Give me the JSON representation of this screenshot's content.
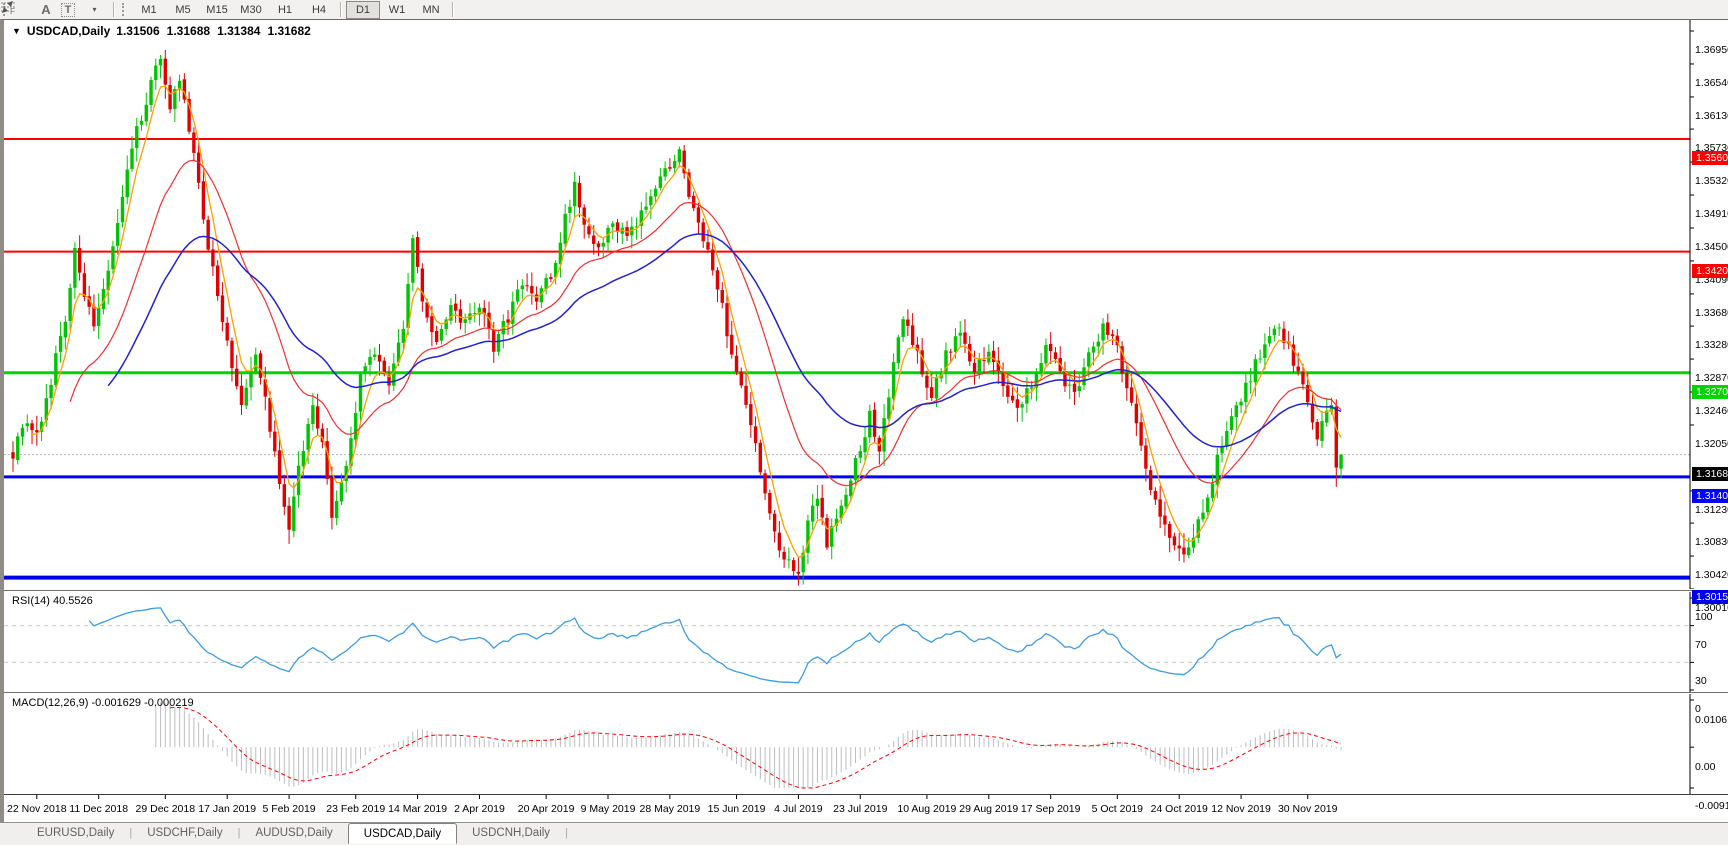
{
  "toolbar": {
    "tool_icons": [
      {
        "name": "fibonacci-lines-icon"
      },
      {
        "name": "text-annotation-icon",
        "glyph": "A"
      },
      {
        "name": "text-label-icon",
        "glyph": "T"
      },
      {
        "name": "arrow-objects-icon"
      },
      {
        "name": "dropdown-caret-icon",
        "glyph": "▾"
      }
    ],
    "timeframes": [
      {
        "label": "M1",
        "active": false
      },
      {
        "label": "M5",
        "active": false
      },
      {
        "label": "M15",
        "active": false
      },
      {
        "label": "M30",
        "active": false
      },
      {
        "label": "H1",
        "active": false
      },
      {
        "label": "H4",
        "active": false
      },
      {
        "label": "D1",
        "active": true
      },
      {
        "label": "W1",
        "active": false
      },
      {
        "label": "MN",
        "active": false
      }
    ]
  },
  "chart": {
    "collapse_marker": "▼",
    "symbol_title": "USDCAD,Daily",
    "ohlc": {
      "open": "1.31506",
      "high": "1.31688",
      "low": "1.31384",
      "close": "1.31682"
    }
  },
  "rsi_panel": {
    "name": "RSI(14)",
    "value": "40.5526"
  },
  "macd_panel": {
    "name": "MACD(12,26,9)",
    "value_main": "-0.001629",
    "value_signal": "-0.000219"
  },
  "tabs": [
    {
      "label": "EURUSD,Daily",
      "active": false
    },
    {
      "label": "USDCHF,Daily",
      "active": false
    },
    {
      "label": "AUDUSD,Daily",
      "active": false
    },
    {
      "label": "USDCAD,Daily",
      "active": true
    },
    {
      "label": "USDCNH,Daily",
      "active": false
    }
  ],
  "colors": {
    "candle_up": "#00C400",
    "candle_down": "#E00000",
    "ma_fast": "#FFA000",
    "ma_mid": "#F03030",
    "ma_slow": "#2222CC",
    "rsi_line": "#3E9BDF",
    "level_dash": "#C8C8C8",
    "macd_hist": "#BDBDBD",
    "macd_signal": "#FF0000",
    "current_price_line": "#B4B4B4",
    "current_price_badge": "#000000",
    "axis_line": "#000000"
  },
  "chart_data": [
    {
      "type": "candlestick",
      "symbol": "USDCAD",
      "timeframe": "Daily",
      "last_ohlc": {
        "open": 1.31506,
        "high": 1.31688,
        "low": 1.31384,
        "close": 1.31682
      },
      "current_price": "1.31682",
      "ylim": [
        1.299,
        1.371
      ],
      "y_ticks": [
        "1.36950",
        "1.36540",
        "1.36130",
        "1.35730",
        "1.35320",
        "1.34910",
        "1.34500",
        "1.34090",
        "1.33680",
        "1.33280",
        "1.32870",
        "1.32460",
        "1.32050",
        "1.31230",
        "1.30830",
        "1.30420",
        "1.30010"
      ],
      "x_tick_labels": [
        "22 Nov 2018",
        "11 Dec 2018",
        "29 Dec 2018",
        "17 Jan 2019",
        "5 Feb 2019",
        "23 Feb 2019",
        "14 Mar 2019",
        "2 Apr 2019",
        "20 Apr 2019",
        "9 May 2019",
        "28 May 2019",
        "15 Jun 2019",
        "4 Jul 2019",
        "23 Jul 2019",
        "10 Aug 2019",
        "29 Aug 2019",
        "17 Sep 2019",
        "5 Oct 2019",
        "24 Oct 2019",
        "12 Nov 2019",
        "30 Nov 2019"
      ],
      "horizontal_lines": [
        {
          "value": "1.35606",
          "color": "#FF0000",
          "thickness": 2,
          "role": "resistance"
        },
        {
          "value": "1.34206",
          "color": "#FF0000",
          "thickness": 2,
          "role": "resistance"
        },
        {
          "value": "1.32700",
          "color": "#00D500",
          "thickness": 3,
          "role": "pivot"
        },
        {
          "value": "1.31405",
          "color": "#0000FF",
          "thickness": 3,
          "role": "support"
        },
        {
          "value": "1.30152",
          "color": "#0000E6",
          "thickness": 4,
          "role": "support"
        }
      ],
      "moving_averages": [
        {
          "name": "fast",
          "period": 5,
          "color": "#FFA000"
        },
        {
          "name": "medium",
          "period": 22,
          "color": "#F03030"
        },
        {
          "name": "slow",
          "period": 45,
          "color": "#2222CC"
        }
      ],
      "bar_count": 280,
      "close_path_anchors": [
        [
          0,
          1.317
        ],
        [
          3,
          1.321
        ],
        [
          5,
          1.319
        ],
        [
          8,
          1.326
        ],
        [
          11,
          1.334
        ],
        [
          13,
          1.3425
        ],
        [
          15,
          1.337
        ],
        [
          17,
          1.332
        ],
        [
          20,
          1.34
        ],
        [
          23,
          1.349
        ],
        [
          26,
          1.357
        ],
        [
          29,
          1.363
        ],
        [
          31,
          1.366
        ],
        [
          33,
          1.36
        ],
        [
          35,
          1.3638
        ],
        [
          38,
          1.354
        ],
        [
          41,
          1.343
        ],
        [
          44,
          1.333
        ],
        [
          46,
          1.328
        ],
        [
          48,
          1.323
        ],
        [
          51,
          1.329
        ],
        [
          53,
          1.324
        ],
        [
          56,
          1.313
        ],
        [
          58,
          1.308
        ],
        [
          60,
          1.315
        ],
        [
          63,
          1.3235
        ],
        [
          65,
          1.318
        ],
        [
          67,
          1.3095
        ],
        [
          70,
          1.315
        ],
        [
          73,
          1.3265
        ],
        [
          76,
          1.33
        ],
        [
          79,
          1.3255
        ],
        [
          82,
          1.333
        ],
        [
          84,
          1.343
        ],
        [
          86,
          1.336
        ],
        [
          89,
          1.331
        ],
        [
          92,
          1.335
        ],
        [
          95,
          1.333
        ],
        [
          98,
          1.3355
        ],
        [
          101,
          1.33
        ],
        [
          104,
          1.334
        ],
        [
          107,
          1.338
        ],
        [
          110,
          1.336
        ],
        [
          113,
          1.339
        ],
        [
          116,
          1.346
        ],
        [
          118,
          1.3505
        ],
        [
          120,
          1.345
        ],
        [
          123,
          1.342
        ],
        [
          126,
          1.346
        ],
        [
          129,
          1.3435
        ],
        [
          132,
          1.347
        ],
        [
          135,
          1.35
        ],
        [
          138,
          1.353
        ],
        [
          140,
          1.3552
        ],
        [
          142,
          1.349
        ],
        [
          145,
          1.344
        ],
        [
          148,
          1.338
        ],
        [
          150,
          1.332
        ],
        [
          153,
          1.3255
        ],
        [
          156,
          1.318
        ],
        [
          158,
          1.312
        ],
        [
          160,
          1.307
        ],
        [
          162,
          1.304
        ],
        [
          165,
          1.302
        ],
        [
          167,
          1.308
        ],
        [
          169,
          1.312
        ],
        [
          171,
          1.306
        ],
        [
          174,
          1.31
        ],
        [
          177,
          1.316
        ],
        [
          180,
          1.3215
        ],
        [
          182,
          1.318
        ],
        [
          185,
          1.328
        ],
        [
          187,
          1.334
        ],
        [
          190,
          1.329
        ],
        [
          193,
          1.324
        ],
        [
          196,
          1.329
        ],
        [
          199,
          1.332
        ],
        [
          202,
          1.327
        ],
        [
          205,
          1.33
        ],
        [
          208,
          1.325
        ],
        [
          211,
          1.322
        ],
        [
          214,
          1.326
        ],
        [
          217,
          1.33
        ],
        [
          220,
          1.327
        ],
        [
          223,
          1.324
        ],
        [
          226,
          1.329
        ],
        [
          229,
          1.333
        ],
        [
          232,
          1.33
        ],
        [
          235,
          1.323
        ],
        [
          238,
          1.315
        ],
        [
          241,
          1.309
        ],
        [
          244,
          1.306
        ],
        [
          247,
          1.3045
        ],
        [
          250,
          1.31
        ],
        [
          253,
          1.316
        ],
        [
          256,
          1.321
        ],
        [
          258,
          1.324
        ],
        [
          261,
          1.328
        ],
        [
          264,
          1.331
        ],
        [
          266,
          1.3325
        ],
        [
          268,
          1.3305
        ],
        [
          270,
          1.3265
        ],
        [
          272,
          1.3235
        ],
        [
          274,
          1.3195
        ],
        [
          276,
          1.3225
        ],
        [
          277,
          1.3228
        ],
        [
          278,
          1.3152
        ],
        [
          279,
          1.31682
        ]
      ],
      "x_tick_bar_indices": [
        5,
        18,
        32,
        45,
        58,
        72,
        85,
        98,
        112,
        125,
        138,
        152,
        165,
        178,
        192,
        205,
        218,
        232,
        245,
        258,
        272
      ]
    },
    {
      "type": "line",
      "name": "RSI(14)",
      "current_value": 40.5526,
      "ylim": [
        0,
        100
      ],
      "y_ticks": [
        "100",
        "70",
        "30",
        "0"
      ],
      "levels": [
        70,
        30
      ],
      "legend_position": "top-left"
    },
    {
      "type": "bar+line",
      "name": "MACD(12,26,9)",
      "macd_value": -0.001629,
      "signal_value": -0.000219,
      "ylim": [
        -0.009181,
        0.010615
      ],
      "y_ticks": [
        "0.010615",
        "0.00",
        "-0.009181"
      ],
      "histogram_series": "MACD main (silver histogram)",
      "line_series": "Signal (red dashed)"
    }
  ]
}
